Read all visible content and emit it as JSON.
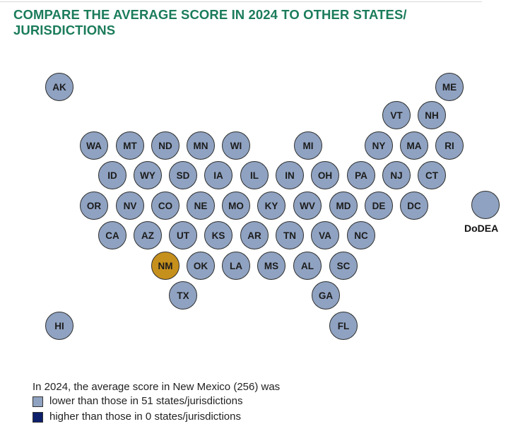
{
  "title": "COMPARE THE AVERAGE SCORE IN 2024 TO OTHER STATES/ JURISDICTIONS",
  "colors": {
    "title": "#1b7c5a",
    "lower": "#8fa2c1",
    "higher": "#0d1f6b",
    "focus": "#c6901c"
  },
  "focus_state": "NM",
  "states": [
    "AK",
    "ME",
    "VT",
    "NH",
    "WA",
    "MT",
    "ND",
    "MN",
    "WI",
    "MI",
    "NY",
    "MA",
    "RI",
    "ID",
    "WY",
    "SD",
    "IA",
    "IL",
    "IN",
    "OH",
    "PA",
    "NJ",
    "CT",
    "OR",
    "NV",
    "CO",
    "NE",
    "MO",
    "KY",
    "WV",
    "MD",
    "DE",
    "DC",
    "CA",
    "AZ",
    "UT",
    "KS",
    "AR",
    "TN",
    "VA",
    "NC",
    "NM",
    "OK",
    "LA",
    "MS",
    "AL",
    "SC",
    "TX",
    "GA",
    "HI",
    "FL",
    "DoDEA"
  ],
  "dodea_label": "DoDEA",
  "caption": "In 2024, the average score in New Mexico (256) was",
  "legend": [
    {
      "label": "lower than those in 51 states/jurisdictions",
      "color": "#8fa2c1"
    },
    {
      "label": "higher than those in 0 states/jurisdictions",
      "color": "#0d1f6b"
    }
  ]
}
